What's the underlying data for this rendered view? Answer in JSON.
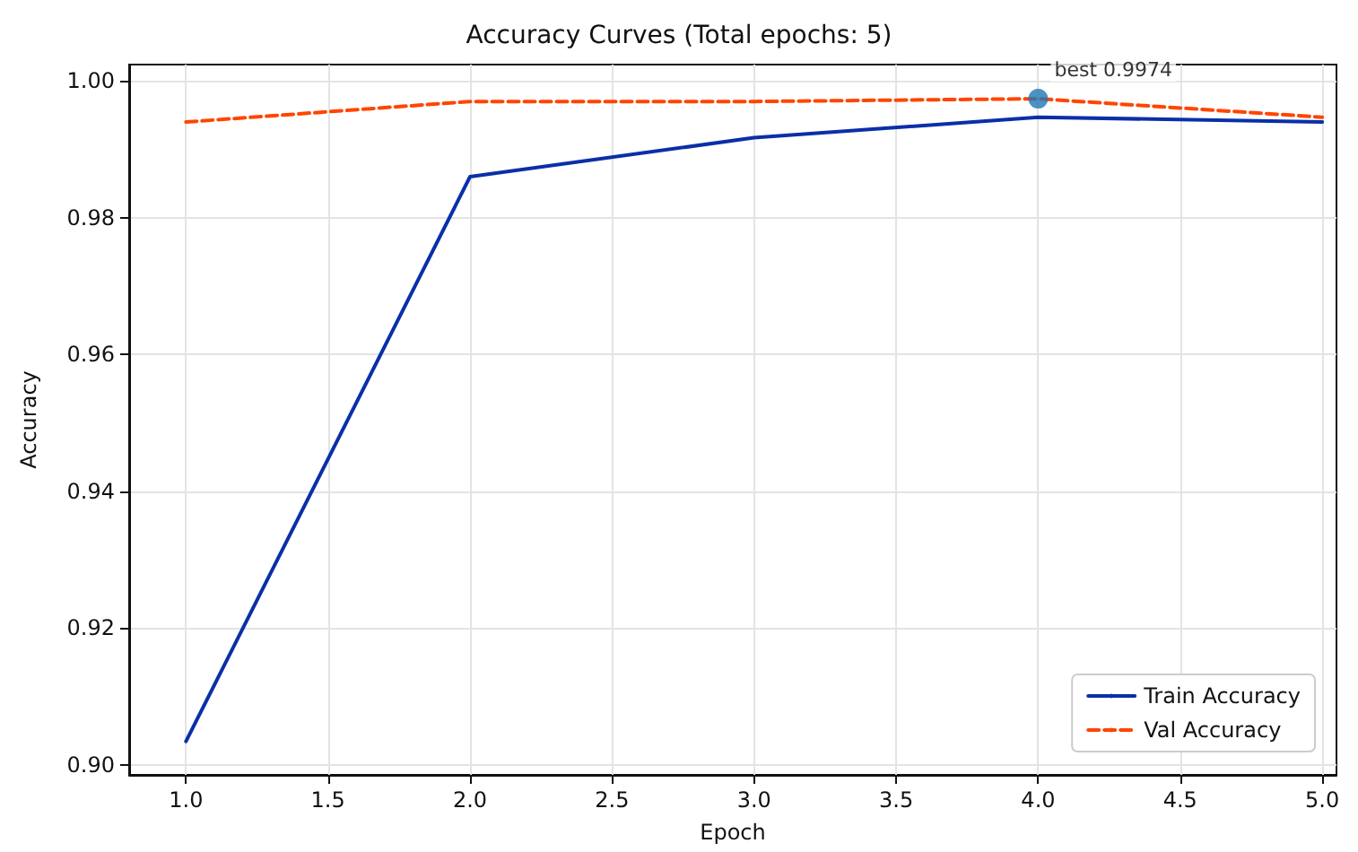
{
  "chart_data": {
    "type": "line",
    "title": "Accuracy Curves (Total epochs: 5)",
    "xlabel": "Epoch",
    "ylabel": "Accuracy",
    "x": [
      1,
      2,
      3,
      4,
      5
    ],
    "series": [
      {
        "name": "Train Accuracy",
        "color": "#0a2fa8",
        "line_style": "solid",
        "values": [
          0.9034,
          0.986,
          0.9917,
          0.9947,
          0.994
        ]
      },
      {
        "name": "Val Accuracy",
        "color": "#ff4500",
        "line_style": "dashed",
        "values": [
          0.994,
          0.997,
          0.997,
          0.9974,
          0.9947
        ]
      },
      {
        "type": "scatter",
        "color": "#1f77b4",
        "marker": "circle",
        "x": [
          4
        ],
        "values": [
          0.9974
        ]
      }
    ],
    "annotations": [
      {
        "text": "best 0.9974",
        "x": 4,
        "y": 0.9974
      }
    ],
    "xlim": [
      0.8,
      5.05
    ],
    "xticks": [
      {
        "value": 1,
        "label": "1.0"
      },
      {
        "value": 1.5,
        "label": "1.5"
      },
      {
        "value": 2,
        "label": "2.0"
      },
      {
        "value": 2.5,
        "label": "2.5"
      },
      {
        "value": 3,
        "label": "3.0"
      },
      {
        "value": 3.5,
        "label": "3.5"
      },
      {
        "value": 4,
        "label": "4.0"
      },
      {
        "value": 4.5,
        "label": "4.5"
      },
      {
        "value": 5,
        "label": "5.0"
      }
    ],
    "ylim": [
      0.8985,
      1.0024
    ],
    "yticks": [
      {
        "value": 0.9,
        "label": "0.90"
      },
      {
        "value": 0.92,
        "label": "0.92"
      },
      {
        "value": 0.94,
        "label": "0.94"
      },
      {
        "value": 0.96,
        "label": "0.96"
      },
      {
        "value": 0.98,
        "label": "0.98"
      },
      {
        "value": 1,
        "label": "1.00"
      }
    ],
    "grid": true,
    "legend": "bottom right",
    "marker": "none"
  }
}
